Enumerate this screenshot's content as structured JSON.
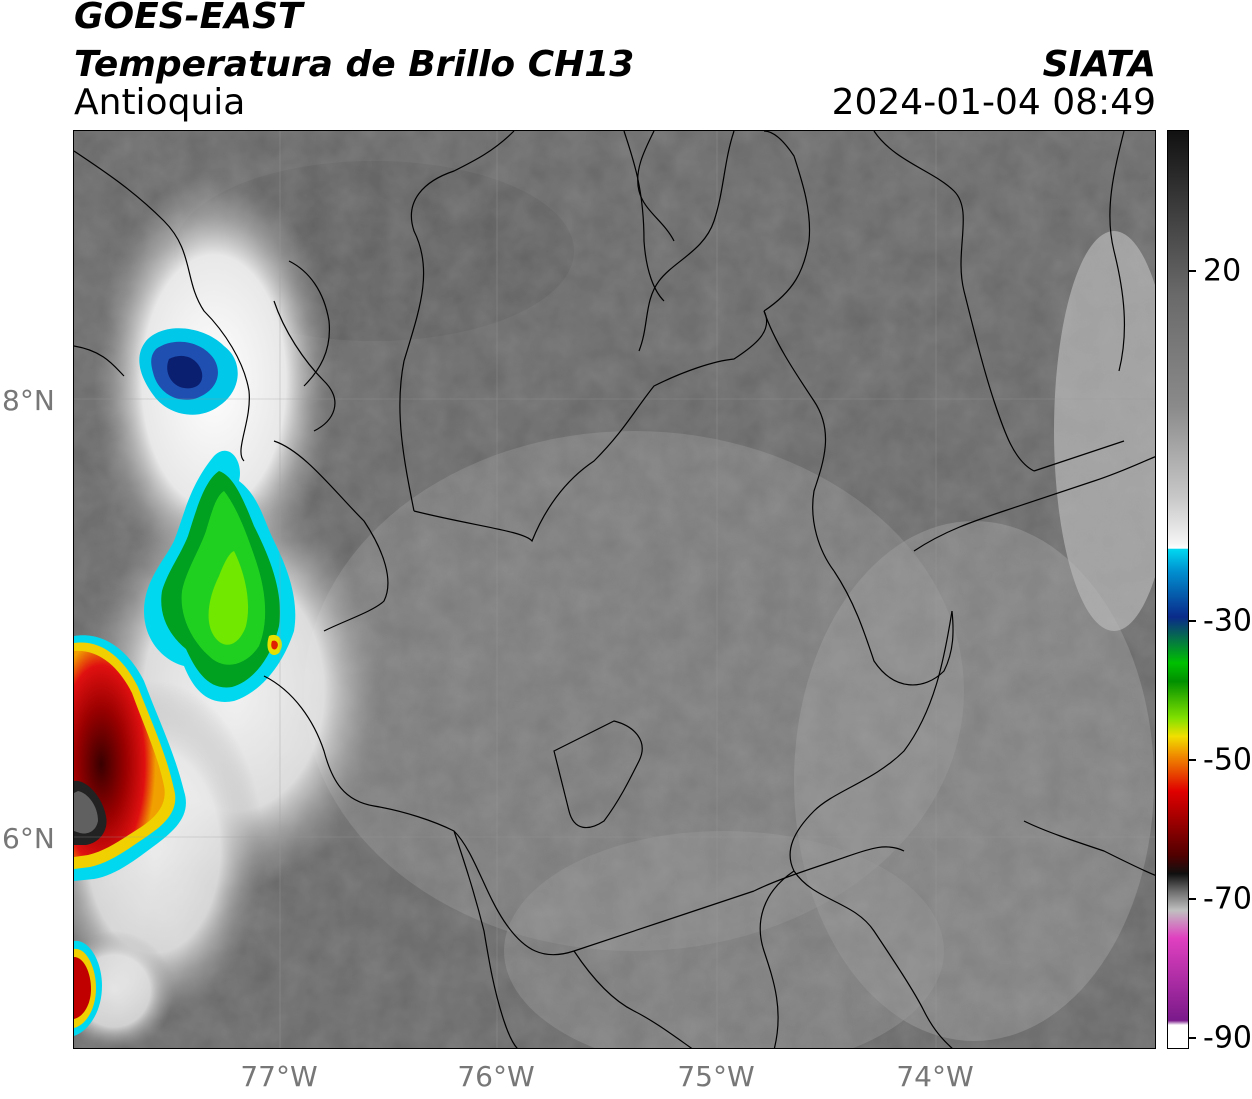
{
  "header": {
    "satellite": "GOES-EAST",
    "product": "Temperatura de Brillo CH13",
    "region": "Antioquia",
    "organization": "SIATA",
    "datetime": "2024-01-04 08:49"
  },
  "axes": {
    "lat_labels": [
      "8°N",
      "6°N"
    ],
    "lon_labels": [
      "77°W",
      "76°W",
      "75°W",
      "74°W"
    ]
  },
  "colorbar": {
    "tick_labels": [
      "20",
      "-30",
      "-50",
      "-70",
      "-90"
    ],
    "colors": {
      "warm": "#111111",
      "gray": "#8a8a8a",
      "white": "#f5f5f5",
      "cyan": "#00d8f0",
      "blue": "#0a2a8a",
      "green": "#00c000",
      "yellow": "#f0e000",
      "red": "#e00000",
      "darkred": "#500000",
      "black": "#101010",
      "pink": "#e040c0",
      "purple": "#7a1a8a"
    }
  }
}
